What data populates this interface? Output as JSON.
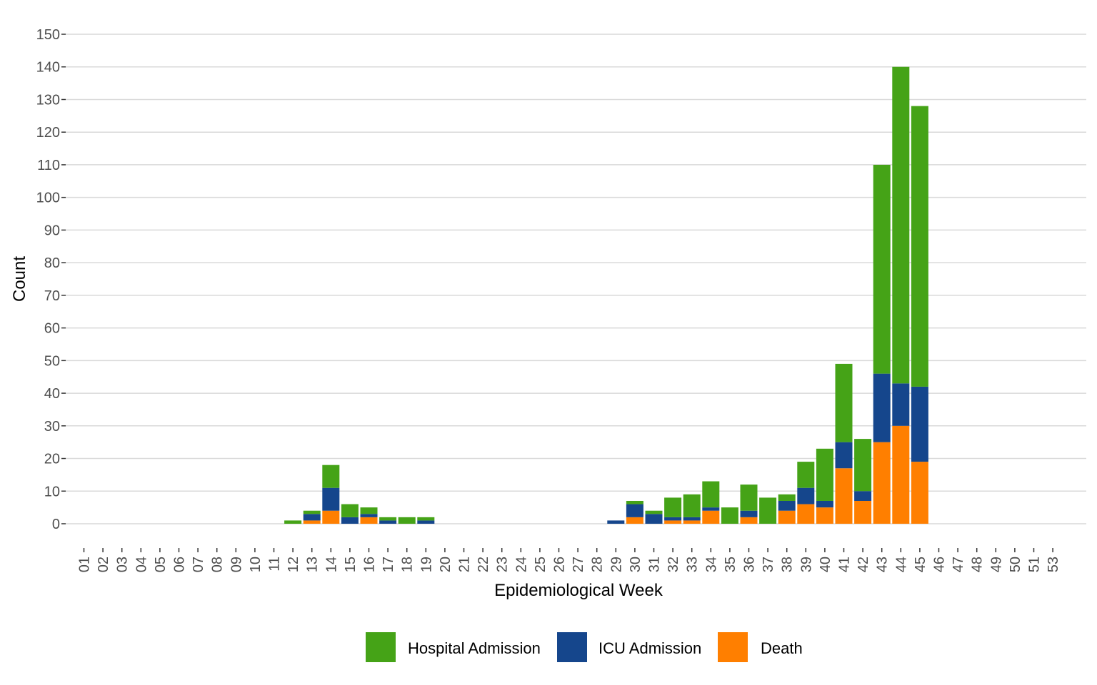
{
  "chart_data": {
    "type": "bar",
    "stacked": true,
    "xlabel": "Epidemiological Week",
    "ylabel": "Count",
    "ylim": [
      0,
      150
    ],
    "yticks": [
      0,
      10,
      20,
      30,
      40,
      50,
      60,
      70,
      80,
      90,
      100,
      110,
      120,
      130,
      140,
      150
    ],
    "grid": "horizontal",
    "legend_position": "bottom",
    "categories": [
      "01",
      "02",
      "03",
      "04",
      "05",
      "06",
      "07",
      "08",
      "09",
      "10",
      "11",
      "12",
      "13",
      "14",
      "15",
      "16",
      "17",
      "18",
      "19",
      "20",
      "21",
      "22",
      "23",
      "24",
      "25",
      "26",
      "27",
      "28",
      "29",
      "30",
      "31",
      "32",
      "33",
      "34",
      "35",
      "36",
      "37",
      "38",
      "39",
      "40",
      "41",
      "42",
      "43",
      "44",
      "45",
      "46",
      "47",
      "48",
      "49",
      "50",
      "51",
      "53"
    ],
    "series": [
      {
        "name": "Death",
        "color": "#FF7F00",
        "values": [
          0,
          0,
          0,
          0,
          0,
          0,
          0,
          0,
          0,
          0,
          0,
          0,
          1,
          4,
          0,
          2,
          0,
          0,
          0,
          0,
          0,
          0,
          0,
          0,
          0,
          0,
          0,
          0,
          0,
          2,
          0,
          1,
          1,
          4,
          0,
          2,
          0,
          4,
          6,
          5,
          17,
          7,
          25,
          30,
          19,
          0,
          0,
          0,
          0,
          0,
          0,
          0
        ]
      },
      {
        "name": "ICU Admission",
        "color": "#15468C",
        "values": [
          0,
          0,
          0,
          0,
          0,
          0,
          0,
          0,
          0,
          0,
          0,
          0,
          2,
          7,
          2,
          1,
          1,
          0,
          1,
          0,
          0,
          0,
          0,
          0,
          0,
          0,
          0,
          0,
          1,
          4,
          3,
          1,
          1,
          1,
          0,
          2,
          0,
          3,
          5,
          2,
          8,
          3,
          21,
          13,
          23,
          0,
          0,
          0,
          0,
          0,
          0,
          0
        ]
      },
      {
        "name": "Hospital Admission",
        "color": "#45A317",
        "values": [
          0,
          0,
          0,
          0,
          0,
          0,
          0,
          0,
          0,
          0,
          0,
          1,
          1,
          7,
          4,
          2,
          1,
          2,
          1,
          0,
          0,
          0,
          0,
          0,
          0,
          0,
          0,
          0,
          0,
          1,
          1,
          6,
          7,
          8,
          5,
          8,
          8,
          2,
          8,
          16,
          24,
          16,
          64,
          97,
          86,
          0,
          0,
          0,
          0,
          0,
          0,
          0
        ]
      }
    ],
    "legend_order": [
      "Hospital Admission",
      "ICU Admission",
      "Death"
    ]
  }
}
